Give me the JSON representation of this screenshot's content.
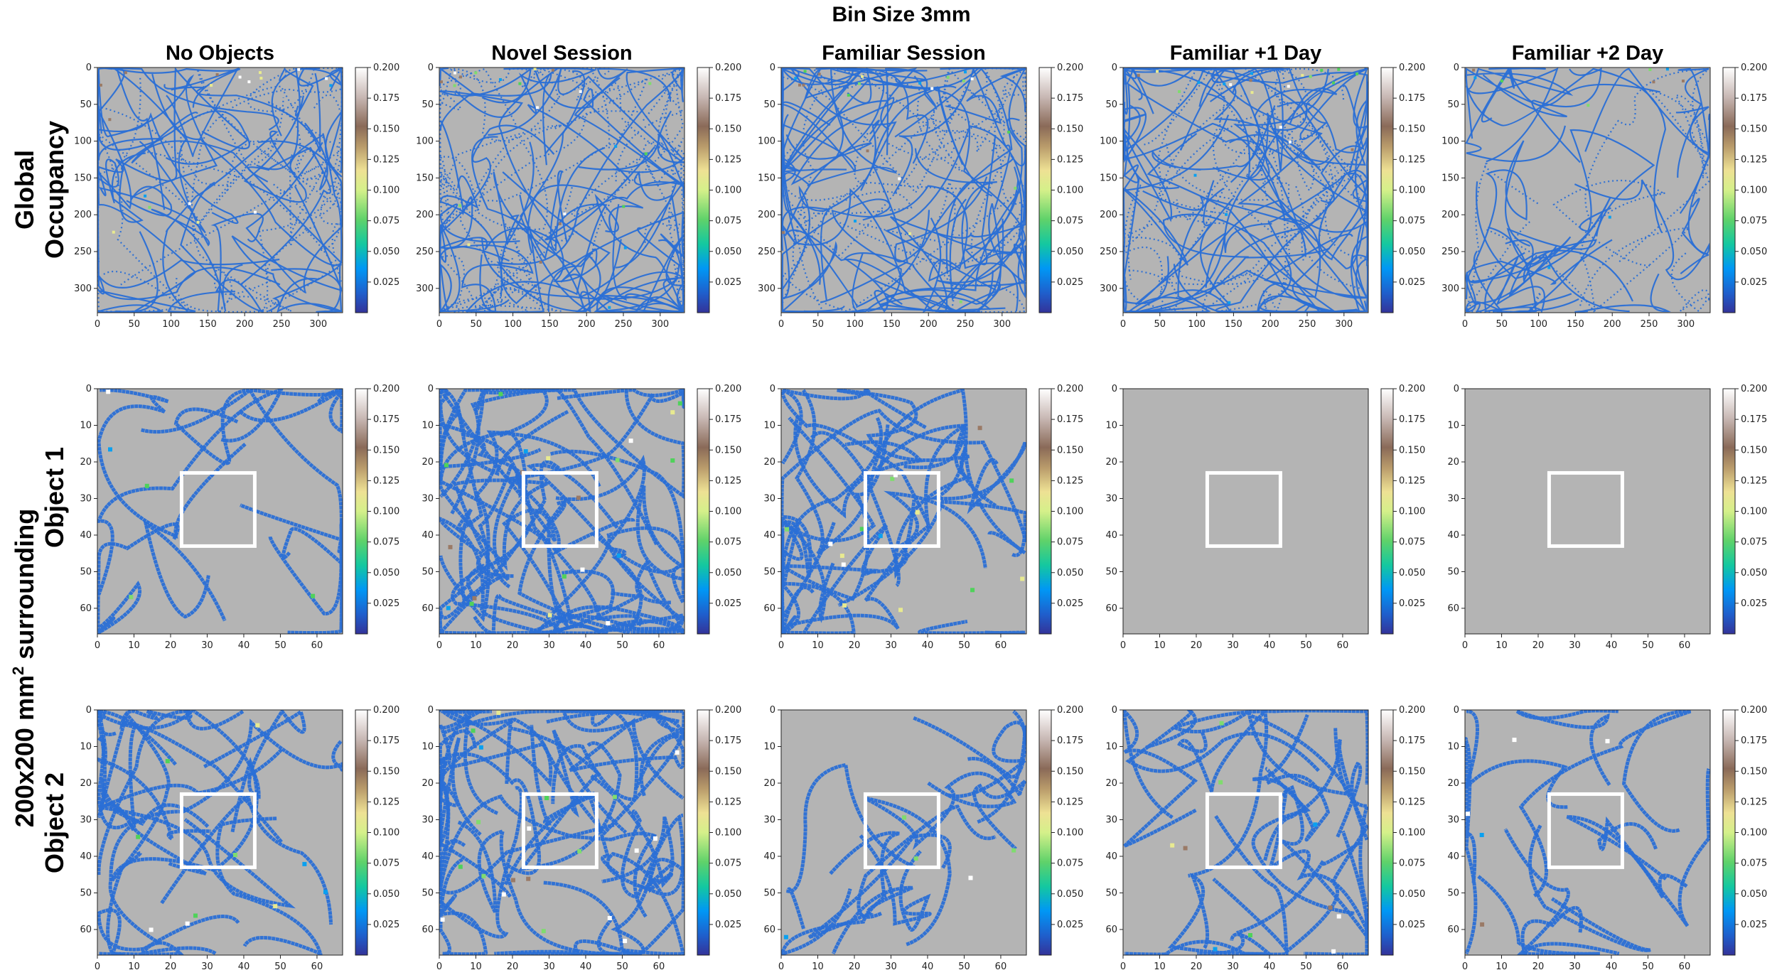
{
  "figure": {
    "title": "Bin Size 3mm",
    "columns": [
      "No Objects",
      "Novel Session",
      "Familiar Session",
      "Familiar +1 Day",
      "Familiar +2 Day"
    ],
    "row_labels": {
      "global_line1": "Global",
      "global_line2": "Occupancy",
      "object1": "Object 1",
      "object2": "Object 2",
      "surround_prefix": "200x200 mm",
      "surround_sup": "2",
      "surround_suffix": " surrounding"
    },
    "colors": {
      "background_bins": "#b4b4b4",
      "object_square": "#ffffff",
      "track_low": "#2a6fd6",
      "colormap": "terrain_r"
    }
  },
  "chart_data": [
    {
      "type": "heatmap",
      "row": "Global Occupancy",
      "column": "No Objects",
      "xlim": [
        0,
        333
      ],
      "ylim": [
        0,
        333
      ],
      "xticks": [
        0,
        50,
        100,
        150,
        200,
        250,
        300
      ],
      "yticks": [
        0,
        50,
        100,
        150,
        200,
        250,
        300
      ],
      "y_inverted": true,
      "colorbar": {
        "range": [
          0,
          0.2
        ],
        "ticks": [
          "0.200",
          "0.175",
          "0.150",
          "0.125",
          "0.100",
          "0.075",
          "0.050",
          "0.025"
        ]
      }
    },
    {
      "type": "heatmap",
      "row": "Global Occupancy",
      "column": "Novel Session",
      "xlim": [
        0,
        333
      ],
      "ylim": [
        0,
        333
      ],
      "xticks": [
        0,
        50,
        100,
        150,
        200,
        250,
        300
      ],
      "yticks": [
        0,
        50,
        100,
        150,
        200,
        250,
        300
      ],
      "y_inverted": true,
      "colorbar": {
        "range": [
          0,
          0.2
        ],
        "ticks": [
          "0.200",
          "0.175",
          "0.150",
          "0.125",
          "0.100",
          "0.075",
          "0.050",
          "0.025"
        ]
      }
    },
    {
      "type": "heatmap",
      "row": "Global Occupancy",
      "column": "Familiar Session",
      "xlim": [
        0,
        333
      ],
      "ylim": [
        0,
        333
      ],
      "xticks": [
        0,
        50,
        100,
        150,
        200,
        250,
        300
      ],
      "yticks": [
        0,
        50,
        100,
        150,
        200,
        250,
        300
      ],
      "y_inverted": true,
      "colorbar": {
        "range": [
          0,
          0.2
        ],
        "ticks": [
          "0.200",
          "0.175",
          "0.150",
          "0.125",
          "0.100",
          "0.075",
          "0.050",
          "0.025"
        ]
      }
    },
    {
      "type": "heatmap",
      "row": "Global Occupancy",
      "column": "Familiar +1 Day",
      "xlim": [
        0,
        333
      ],
      "ylim": [
        0,
        333
      ],
      "xticks": [
        0,
        50,
        100,
        150,
        200,
        250,
        300
      ],
      "yticks": [
        0,
        50,
        100,
        150,
        200,
        250,
        300
      ],
      "y_inverted": true,
      "colorbar": {
        "range": [
          0,
          0.2
        ],
        "ticks": [
          "0.200",
          "0.175",
          "0.150",
          "0.125",
          "0.100",
          "0.075",
          "0.050",
          "0.025"
        ]
      }
    },
    {
      "type": "heatmap",
      "row": "Global Occupancy",
      "column": "Familiar +2 Day",
      "xlim": [
        0,
        333
      ],
      "ylim": [
        0,
        333
      ],
      "xticks": [
        0,
        50,
        100,
        150,
        200,
        250,
        300
      ],
      "yticks": [
        0,
        50,
        100,
        150,
        200,
        250,
        300
      ],
      "y_inverted": true,
      "colorbar": {
        "range": [
          0,
          0.2
        ],
        "ticks": [
          "0.200",
          "0.175",
          "0.150",
          "0.125",
          "0.100",
          "0.075",
          "0.050",
          "0.025"
        ]
      }
    },
    {
      "type": "heatmap",
      "row": "Object 1",
      "column": "No Objects",
      "xlim": [
        0,
        67
      ],
      "ylim": [
        0,
        67
      ],
      "xticks": [
        0,
        10,
        20,
        30,
        40,
        50,
        60
      ],
      "yticks": [
        0,
        10,
        20,
        30,
        40,
        50,
        60
      ],
      "y_inverted": true,
      "object_box": [
        23,
        23,
        43,
        43
      ],
      "colorbar": {
        "range": [
          0,
          0.2
        ],
        "ticks": [
          "0.200",
          "0.175",
          "0.150",
          "0.125",
          "0.100",
          "0.075",
          "0.050",
          "0.025"
        ]
      }
    },
    {
      "type": "heatmap",
      "row": "Object 1",
      "column": "Novel Session",
      "xlim": [
        0,
        67
      ],
      "ylim": [
        0,
        67
      ],
      "xticks": [
        0,
        10,
        20,
        30,
        40,
        50,
        60
      ],
      "yticks": [
        0,
        10,
        20,
        30,
        40,
        50,
        60
      ],
      "y_inverted": true,
      "object_box": [
        23,
        23,
        43,
        43
      ],
      "colorbar": {
        "range": [
          0,
          0.2
        ],
        "ticks": [
          "0.200",
          "0.175",
          "0.150",
          "0.125",
          "0.100",
          "0.075",
          "0.050",
          "0.025"
        ]
      }
    },
    {
      "type": "heatmap",
      "row": "Object 1",
      "column": "Familiar Session",
      "xlim": [
        0,
        67
      ],
      "ylim": [
        0,
        67
      ],
      "xticks": [
        0,
        10,
        20,
        30,
        40,
        50,
        60
      ],
      "yticks": [
        0,
        10,
        20,
        30,
        40,
        50,
        60
      ],
      "y_inverted": true,
      "object_box": [
        23,
        23,
        43,
        43
      ],
      "colorbar": {
        "range": [
          0,
          0.2
        ],
        "ticks": [
          "0.200",
          "0.175",
          "0.150",
          "0.125",
          "0.100",
          "0.075",
          "0.050",
          "0.025"
        ]
      }
    },
    {
      "type": "heatmap",
      "row": "Object 1",
      "column": "Familiar +1 Day",
      "xlim": [
        0,
        67
      ],
      "ylim": [
        0,
        67
      ],
      "xticks": [
        0,
        10,
        20,
        30,
        40,
        50,
        60
      ],
      "yticks": [
        0,
        10,
        20,
        30,
        40,
        50,
        60
      ],
      "y_inverted": true,
      "object_box": [
        23,
        23,
        43,
        43
      ],
      "colorbar": {
        "range": [
          0,
          0.2
        ],
        "ticks": [
          "0.200",
          "0.175",
          "0.150",
          "0.125",
          "0.100",
          "0.075",
          "0.050",
          "0.025"
        ]
      }
    },
    {
      "type": "heatmap",
      "row": "Object 1",
      "column": "Familiar +2 Day",
      "xlim": [
        0,
        67
      ],
      "ylim": [
        0,
        67
      ],
      "xticks": [
        0,
        10,
        20,
        30,
        40,
        50,
        60
      ],
      "yticks": [
        0,
        10,
        20,
        30,
        40,
        50,
        60
      ],
      "y_inverted": true,
      "object_box": [
        23,
        23,
        43,
        43
      ],
      "colorbar": {
        "range": [
          0,
          0.2
        ],
        "ticks": [
          "0.200",
          "0.175",
          "0.150",
          "0.125",
          "0.100",
          "0.075",
          "0.050",
          "0.025"
        ]
      }
    },
    {
      "type": "heatmap",
      "row": "Object 2",
      "column": "No Objects",
      "xlim": [
        0,
        67
      ],
      "ylim": [
        0,
        67
      ],
      "xticks": [
        0,
        10,
        20,
        30,
        40,
        50,
        60
      ],
      "yticks": [
        0,
        10,
        20,
        30,
        40,
        50,
        60
      ],
      "y_inverted": true,
      "object_box": [
        23,
        23,
        43,
        43
      ],
      "colorbar": {
        "range": [
          0,
          0.2
        ],
        "ticks": [
          "0.200",
          "0.175",
          "0.150",
          "0.125",
          "0.100",
          "0.075",
          "0.050",
          "0.025"
        ]
      }
    },
    {
      "type": "heatmap",
      "row": "Object 2",
      "column": "Novel Session",
      "xlim": [
        0,
        67
      ],
      "ylim": [
        0,
        67
      ],
      "xticks": [
        0,
        10,
        20,
        30,
        40,
        50,
        60
      ],
      "yticks": [
        0,
        10,
        20,
        30,
        40,
        50,
        60
      ],
      "y_inverted": true,
      "object_box": [
        23,
        23,
        43,
        43
      ],
      "colorbar": {
        "range": [
          0,
          0.2
        ],
        "ticks": [
          "0.200",
          "0.175",
          "0.150",
          "0.125",
          "0.100",
          "0.075",
          "0.050",
          "0.025"
        ]
      }
    },
    {
      "type": "heatmap",
      "row": "Object 2",
      "column": "Familiar Session",
      "xlim": [
        0,
        67
      ],
      "ylim": [
        0,
        67
      ],
      "xticks": [
        0,
        10,
        20,
        30,
        40,
        50,
        60
      ],
      "yticks": [
        0,
        10,
        20,
        30,
        40,
        50,
        60
      ],
      "y_inverted": true,
      "object_box": [
        23,
        23,
        43,
        43
      ],
      "colorbar": {
        "range": [
          0,
          0.2
        ],
        "ticks": [
          "0.200",
          "0.175",
          "0.150",
          "0.125",
          "0.100",
          "0.075",
          "0.050",
          "0.025"
        ]
      }
    },
    {
      "type": "heatmap",
      "row": "Object 2",
      "column": "Familiar +1 Day",
      "xlim": [
        0,
        67
      ],
      "ylim": [
        0,
        67
      ],
      "xticks": [
        0,
        10,
        20,
        30,
        40,
        50,
        60
      ],
      "yticks": [
        0,
        10,
        20,
        30,
        40,
        50,
        60
      ],
      "y_inverted": true,
      "object_box": [
        23,
        23,
        43,
        43
      ],
      "colorbar": {
        "range": [
          0,
          0.2
        ],
        "ticks": [
          "0.200",
          "0.175",
          "0.150",
          "0.125",
          "0.100",
          "0.075",
          "0.050",
          "0.025"
        ]
      }
    },
    {
      "type": "heatmap",
      "row": "Object 2",
      "column": "Familiar +2 Day",
      "xlim": [
        0,
        67
      ],
      "ylim": [
        0,
        67
      ],
      "xticks": [
        0,
        10,
        20,
        30,
        40,
        50,
        60
      ],
      "yticks": [
        0,
        10,
        20,
        30,
        40,
        50,
        60
      ],
      "y_inverted": true,
      "object_box": [
        23,
        23,
        43,
        43
      ],
      "colorbar": {
        "range": [
          0,
          0.2
        ],
        "ticks": [
          "0.200",
          "0.175",
          "0.150",
          "0.125",
          "0.100",
          "0.075",
          "0.050",
          "0.025"
        ]
      }
    }
  ]
}
